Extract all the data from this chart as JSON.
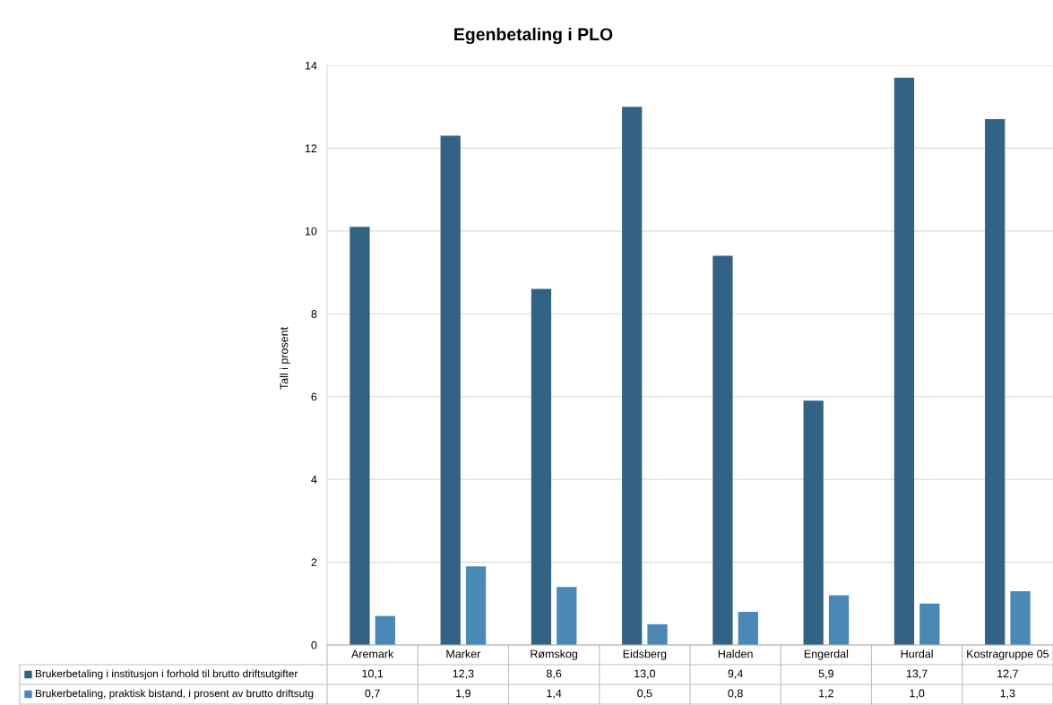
{
  "chart_data": {
    "type": "bar",
    "title": "Egenbetaling i PLO",
    "ylabel": "Tall i prosent",
    "categories": [
      "Aremark",
      "Marker",
      "Rømskog",
      "Eidsberg",
      "Halden",
      "Engerdal",
      "Hurdal",
      "Kostragruppe 05"
    ],
    "series": [
      {
        "name": "Brukerbetaling i institusjon i forhold til brutto driftsutgifter",
        "color": "#336384",
        "values": [
          10.1,
          12.3,
          8.6,
          13.0,
          9.4,
          5.9,
          13.7,
          12.7
        ],
        "value_labels": [
          "10,1",
          "12,3",
          "8,6",
          "13,0",
          "9,4",
          "5,9",
          "13,7",
          "12,7"
        ]
      },
      {
        "name": "Brukerbetaling, praktisk bistand, i prosent av brutto driftsutg",
        "color": "#4a88b6",
        "values": [
          0.7,
          1.9,
          1.4,
          0.5,
          0.8,
          1.2,
          1.0,
          1.3
        ],
        "value_labels": [
          "0,7",
          "1,9",
          "1,4",
          "0,5",
          "0,8",
          "1,2",
          "1,0",
          "1,3"
        ]
      }
    ],
    "ylim": [
      0,
      14
    ],
    "yticks": [
      0,
      2,
      4,
      6,
      8,
      10,
      12,
      14
    ],
    "grid": "y",
    "legend": "bottom"
  }
}
